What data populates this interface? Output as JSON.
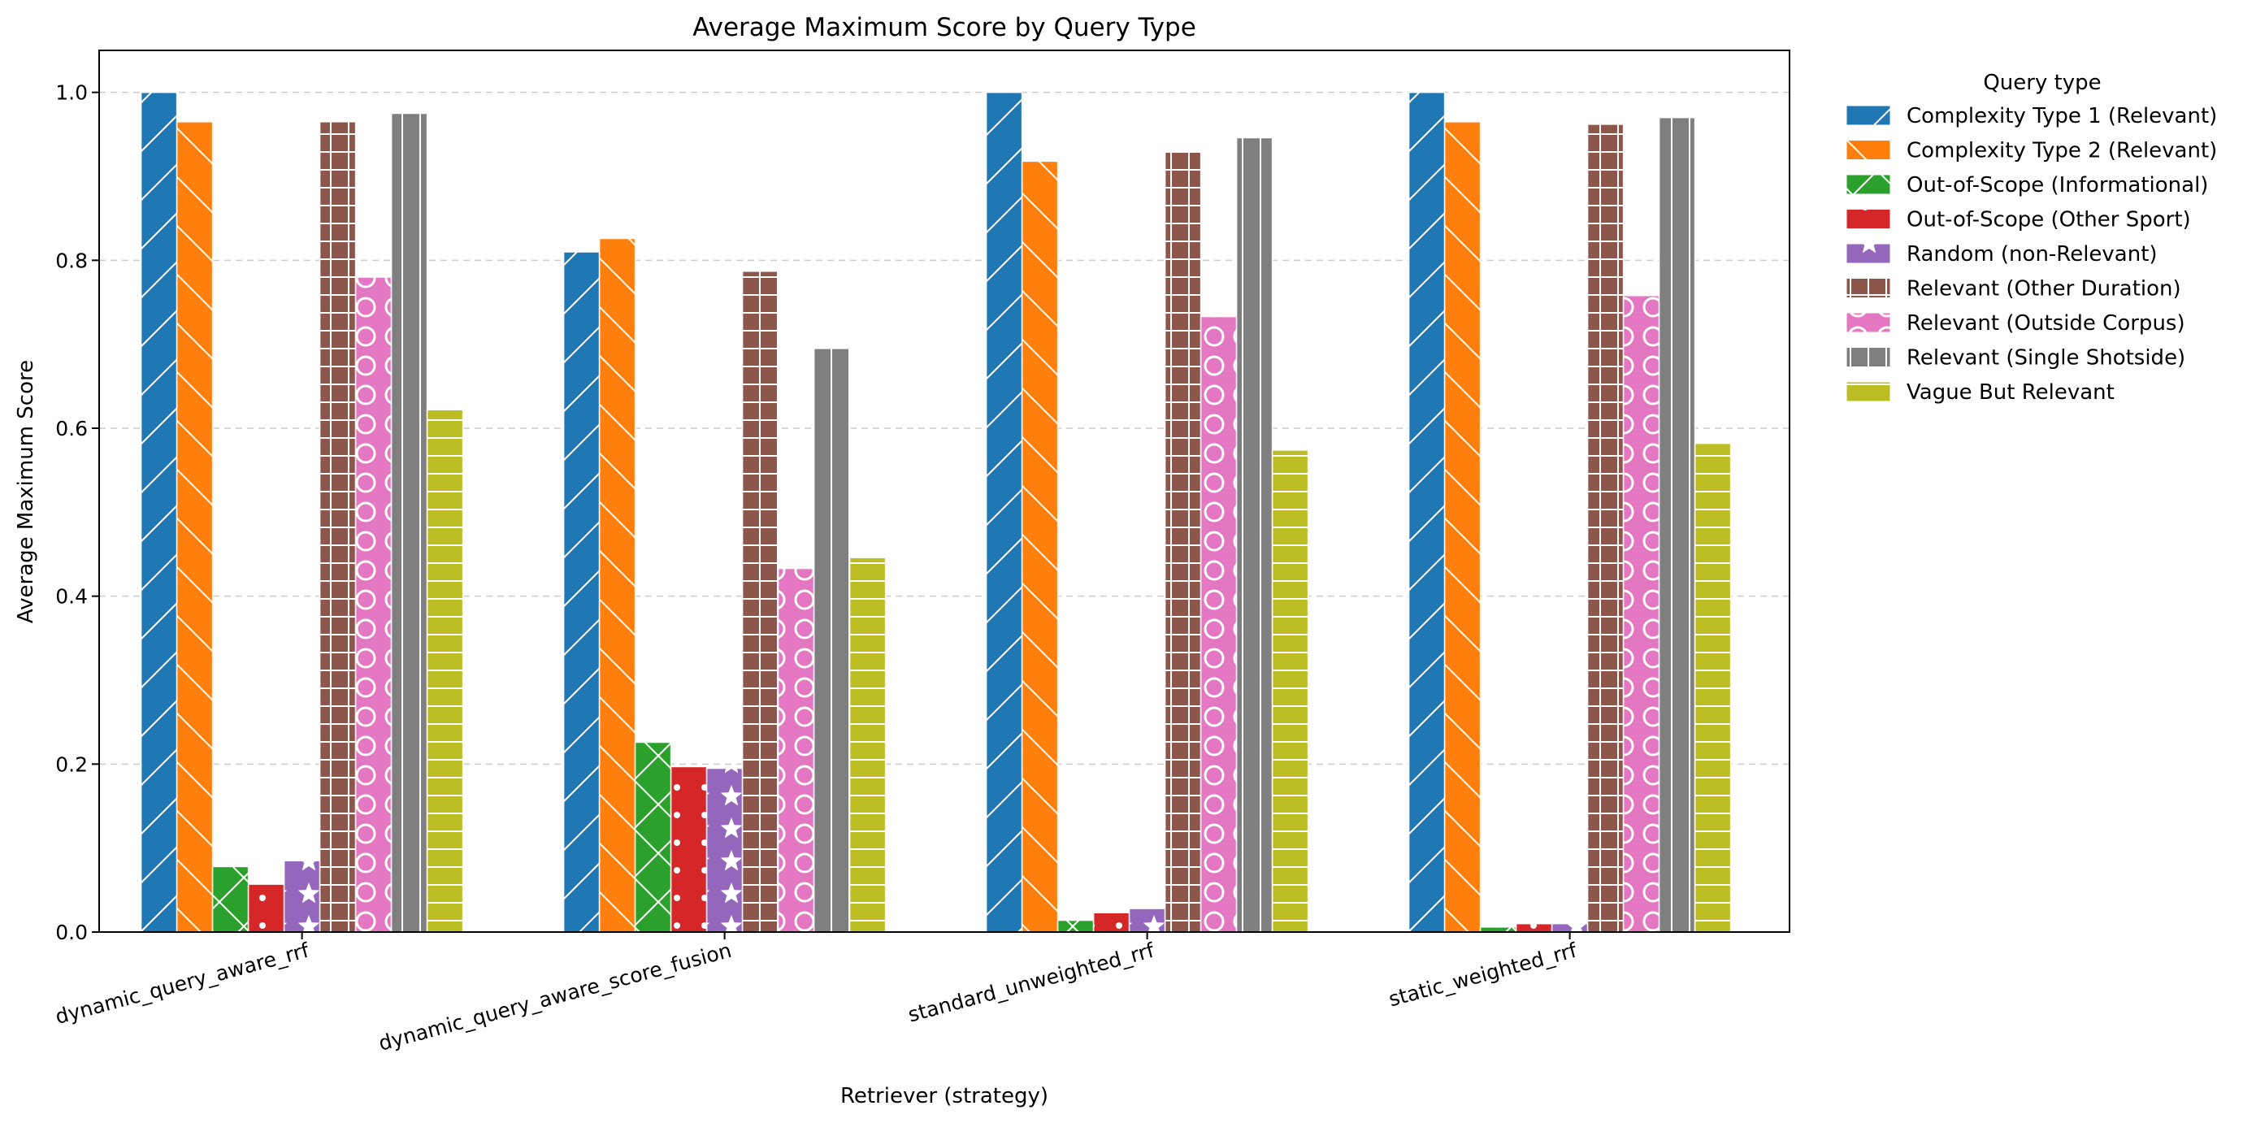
{
  "chart_data": {
    "type": "bar",
    "title": "Average Maximum Score by Query Type",
    "xlabel": "Retriever (strategy)",
    "ylabel": "Average Maximum Score",
    "ylim": [
      0,
      1.05
    ],
    "yticks": [
      0.0,
      0.2,
      0.4,
      0.6,
      0.8,
      1.0
    ],
    "ytick_labels": [
      "0.0",
      "0.2",
      "0.4",
      "0.6",
      "0.8",
      "1.0"
    ],
    "grid": "y, dashed",
    "legend": {
      "title": "Query type",
      "placement": "outside right"
    },
    "categories": [
      "dynamic_query_aware_rrf",
      "dynamic_query_aware_score_fusion",
      "standard_unweighted_rrf",
      "static_weighted_rrf"
    ],
    "series": [
      {
        "name": "Complexity Type 1 (Relevant)",
        "color": "#1f77b4",
        "hatch": "diagonal",
        "values": [
          1.0,
          0.81,
          1.0,
          1.0
        ]
      },
      {
        "name": "Complexity Type 2 (Relevant)",
        "color": "#ff7f0e",
        "hatch": "back-diagonal",
        "values": [
          0.965,
          0.826,
          0.918,
          0.965
        ]
      },
      {
        "name": "Out-of-Scope (Informational)",
        "color": "#2ca02c",
        "hatch": "crosshatch-x",
        "values": [
          0.078,
          0.226,
          0.014,
          0.006
        ]
      },
      {
        "name": "Out-of-Scope (Other Sport)",
        "color": "#d62728",
        "hatch": "dots",
        "values": [
          0.057,
          0.197,
          0.023,
          0.01
        ]
      },
      {
        "name": "Random (non-Relevant)",
        "color": "#9467bd",
        "hatch": "stars",
        "values": [
          0.085,
          0.195,
          0.028,
          0.01
        ]
      },
      {
        "name": "Relevant (Other Duration)",
        "color": "#8c564b",
        "hatch": "grid",
        "values": [
          0.965,
          0.787,
          0.93,
          0.962
        ]
      },
      {
        "name": "Relevant (Outside Corpus)",
        "color": "#e377c2",
        "hatch": "circles",
        "values": [
          0.78,
          0.433,
          0.733,
          0.758
        ]
      },
      {
        "name": "Relevant (Single Shotside)",
        "color": "#7f7f7f",
        "hatch": "vertical",
        "values": [
          0.975,
          0.695,
          0.946,
          0.97
        ]
      },
      {
        "name": "Vague But Relevant",
        "color": "#bcbd22",
        "hatch": "horizontal",
        "values": [
          0.622,
          0.446,
          0.574,
          0.582
        ]
      }
    ]
  }
}
